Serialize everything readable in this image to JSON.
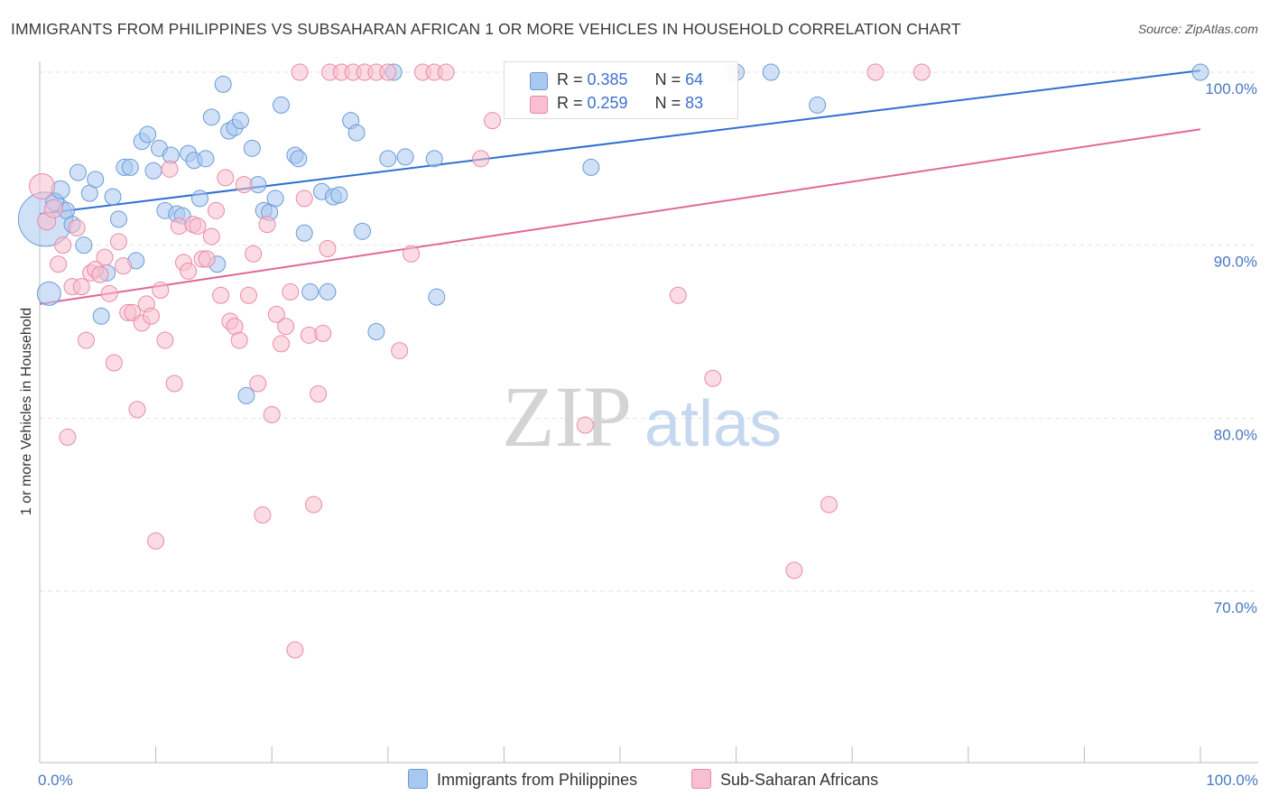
{
  "title": "IMMIGRANTS FROM PHILIPPINES VS SUBSAHARAN AFRICAN 1 OR MORE VEHICLES IN HOUSEHOLD CORRELATION CHART",
  "source": "Source: ZipAtlas.com",
  "watermark": {
    "zip": "ZIP",
    "atlas": "atlas"
  },
  "legend": {
    "rows": [
      {
        "r_label": "R = ",
        "r_value": "0.385",
        "n_label": "N = ",
        "n_value": "64"
      },
      {
        "r_label": "R = ",
        "r_value": "0.259",
        "n_label": "N = ",
        "n_value": "83"
      }
    ]
  },
  "bottom_legend": [
    "Immigrants from Philippines",
    "Sub-Saharan Africans"
  ],
  "colors": {
    "blue_fill": "#a9c8f0",
    "blue_stroke": "#6a9ad8",
    "blue_line": "#2f6fd0",
    "pink_fill": "#f7bfd0",
    "pink_stroke": "#e98aa8",
    "pink_line": "#e0689a",
    "tick_text": "#4a78c2",
    "grid": "#e2e2e2"
  },
  "chart_data": {
    "type": "scatter",
    "title": "IMMIGRANTS FROM PHILIPPINES VS SUBSAHARAN AFRICAN 1 OR MORE VEHICLES IN HOUSEHOLD CORRELATION CHART",
    "xlabel": "",
    "ylabel": "1 or more Vehicles in Household",
    "xlim": [
      0,
      100
    ],
    "ylim": [
      60.5,
      101.5
    ],
    "x_tick_labels": [
      "0.0%",
      "100.0%"
    ],
    "y_ticks": [
      70,
      80,
      90,
      100
    ],
    "y_tick_labels": [
      "70.0%",
      "80.0%",
      "90.0%",
      "100.0%"
    ],
    "grid": true,
    "legend_position": "top-center",
    "series": [
      {
        "name": "Immigrants from Philippines",
        "trend": {
          "x": [
            0,
            100
          ],
          "y": [
            91.8,
            100.1
          ]
        },
        "points": [
          [
            0.5,
            91.5,
            30
          ],
          [
            0.8,
            87.2,
            13
          ],
          [
            1.3,
            92.5,
            10
          ],
          [
            1.8,
            93.2,
            10
          ],
          [
            2.3,
            92.0,
            9
          ],
          [
            2.8,
            91.2,
            9
          ],
          [
            3.3,
            94.2,
            9
          ],
          [
            3.8,
            90.0,
            9
          ],
          [
            4.3,
            93.0,
            9
          ],
          [
            4.8,
            93.8,
            9
          ],
          [
            5.3,
            85.9,
            9
          ],
          [
            5.8,
            88.4,
            9
          ],
          [
            6.3,
            92.8,
            9
          ],
          [
            6.8,
            91.5,
            9
          ],
          [
            7.3,
            94.5,
            9
          ],
          [
            7.8,
            94.5,
            9
          ],
          [
            8.3,
            89.1,
            9
          ],
          [
            8.8,
            96.0,
            9
          ],
          [
            9.3,
            96.4,
            9
          ],
          [
            9.8,
            94.3,
            9
          ],
          [
            10.3,
            95.6,
            9
          ],
          [
            10.8,
            92.0,
            9
          ],
          [
            11.3,
            95.2,
            9
          ],
          [
            11.8,
            91.8,
            9
          ],
          [
            12.3,
            91.7,
            9
          ],
          [
            12.8,
            95.3,
            9
          ],
          [
            13.3,
            94.9,
            9
          ],
          [
            13.8,
            92.7,
            9
          ],
          [
            14.3,
            95.0,
            9
          ],
          [
            14.8,
            97.4,
            9
          ],
          [
            15.3,
            88.9,
            9
          ],
          [
            15.8,
            99.3,
            9
          ],
          [
            16.3,
            96.6,
            9
          ],
          [
            16.8,
            96.8,
            9
          ],
          [
            17.3,
            97.2,
            9
          ],
          [
            17.8,
            81.3,
            9
          ],
          [
            18.3,
            95.6,
            9
          ],
          [
            18.8,
            93.5,
            9
          ],
          [
            19.3,
            92.0,
            9
          ],
          [
            19.8,
            91.9,
            9
          ],
          [
            20.3,
            92.7,
            9
          ],
          [
            20.8,
            98.1,
            9
          ],
          [
            22.0,
            95.2,
            9
          ],
          [
            22.3,
            95.0,
            9
          ],
          [
            22.8,
            90.7,
            9
          ],
          [
            23.3,
            87.3,
            9
          ],
          [
            24.3,
            93.1,
            9
          ],
          [
            24.8,
            87.3,
            9
          ],
          [
            25.3,
            92.8,
            9
          ],
          [
            25.8,
            92.9,
            9
          ],
          [
            26.8,
            97.2,
            9
          ],
          [
            27.3,
            96.5,
            9
          ],
          [
            27.8,
            90.8,
            9
          ],
          [
            29.0,
            85.0,
            9
          ],
          [
            30.0,
            95.0,
            9
          ],
          [
            30.5,
            100.0,
            9
          ],
          [
            31.5,
            95.1,
            9
          ],
          [
            34.0,
            95.0,
            9
          ],
          [
            34.2,
            87.0,
            9
          ],
          [
            47.5,
            94.5,
            9
          ],
          [
            60.0,
            100.0,
            9
          ],
          [
            63.0,
            100.0,
            9
          ],
          [
            67.0,
            98.1,
            9
          ],
          [
            100.0,
            100.0,
            9
          ]
        ]
      },
      {
        "name": "Sub-Saharan Africans",
        "trend": {
          "x": [
            0,
            100
          ],
          "y": [
            86.6,
            96.7
          ]
        },
        "points": [
          [
            0.2,
            93.4,
            14
          ],
          [
            0.6,
            91.4,
            10
          ],
          [
            1.2,
            92.1,
            10
          ],
          [
            1.6,
            88.9,
            9
          ],
          [
            2.0,
            90.0,
            9
          ],
          [
            2.4,
            78.9,
            9
          ],
          [
            2.8,
            87.6,
            9
          ],
          [
            3.2,
            91.0,
            9
          ],
          [
            3.6,
            87.6,
            9
          ],
          [
            4.0,
            84.5,
            9
          ],
          [
            4.4,
            88.4,
            9
          ],
          [
            4.8,
            88.6,
            9
          ],
          [
            5.2,
            88.3,
            9
          ],
          [
            5.6,
            89.3,
            9
          ],
          [
            6.0,
            87.2,
            9
          ],
          [
            6.4,
            83.2,
            9
          ],
          [
            6.8,
            90.2,
            9
          ],
          [
            7.2,
            88.8,
            9
          ],
          [
            7.6,
            86.1,
            9
          ],
          [
            8.0,
            86.1,
            9
          ],
          [
            8.4,
            80.5,
            9
          ],
          [
            8.8,
            85.5,
            9
          ],
          [
            9.2,
            86.6,
            9
          ],
          [
            9.6,
            85.9,
            9
          ],
          [
            10.0,
            72.9,
            9
          ],
          [
            10.4,
            87.4,
            9
          ],
          [
            10.8,
            84.5,
            9
          ],
          [
            11.2,
            94.4,
            9
          ],
          [
            11.6,
            82.0,
            9
          ],
          [
            12.0,
            91.1,
            9
          ],
          [
            12.4,
            89.0,
            9
          ],
          [
            12.8,
            88.5,
            9
          ],
          [
            13.2,
            91.2,
            9
          ],
          [
            13.6,
            91.1,
            9
          ],
          [
            14.0,
            89.2,
            9
          ],
          [
            14.4,
            89.2,
            9
          ],
          [
            14.8,
            90.5,
            9
          ],
          [
            15.2,
            92.0,
            9
          ],
          [
            15.6,
            87.1,
            9
          ],
          [
            16.0,
            93.9,
            9
          ],
          [
            16.4,
            85.6,
            9
          ],
          [
            16.8,
            85.3,
            9
          ],
          [
            17.2,
            84.5,
            9
          ],
          [
            17.6,
            93.5,
            9
          ],
          [
            18.0,
            87.1,
            9
          ],
          [
            18.4,
            89.5,
            9
          ],
          [
            18.8,
            82.0,
            9
          ],
          [
            19.2,
            74.4,
            9
          ],
          [
            19.6,
            91.2,
            9
          ],
          [
            20.0,
            80.2,
            9
          ],
          [
            20.4,
            86.0,
            9
          ],
          [
            20.8,
            84.3,
            9
          ],
          [
            21.2,
            85.3,
            9
          ],
          [
            21.6,
            87.3,
            9
          ],
          [
            22.0,
            66.6,
            9
          ],
          [
            22.4,
            100.0,
            9
          ],
          [
            22.8,
            92.7,
            9
          ],
          [
            23.2,
            84.8,
            9
          ],
          [
            23.6,
            75.0,
            9
          ],
          [
            24.0,
            81.4,
            9
          ],
          [
            24.4,
            84.9,
            9
          ],
          [
            24.8,
            89.8,
            9
          ],
          [
            25.0,
            100.0,
            9
          ],
          [
            26.0,
            100.0,
            9
          ],
          [
            27.0,
            100.0,
            9
          ],
          [
            28.0,
            100.0,
            9
          ],
          [
            29.0,
            100.0,
            9
          ],
          [
            30.0,
            100.0,
            9
          ],
          [
            31.0,
            83.9,
            9
          ],
          [
            32.0,
            89.5,
            9
          ],
          [
            33.0,
            100.0,
            9
          ],
          [
            34.0,
            100.0,
            9
          ],
          [
            35.0,
            100.0,
            9
          ],
          [
            38.0,
            95.0,
            9
          ],
          [
            39.0,
            97.2,
            9
          ],
          [
            47.0,
            79.6,
            9
          ],
          [
            55.0,
            87.1,
            9
          ],
          [
            58.0,
            82.3,
            9
          ],
          [
            59.5,
            100.0,
            9
          ],
          [
            65.0,
            71.2,
            9
          ],
          [
            68.0,
            75.0,
            9
          ],
          [
            72.0,
            100.0,
            9
          ],
          [
            76.0,
            100.0,
            9
          ]
        ]
      }
    ]
  }
}
